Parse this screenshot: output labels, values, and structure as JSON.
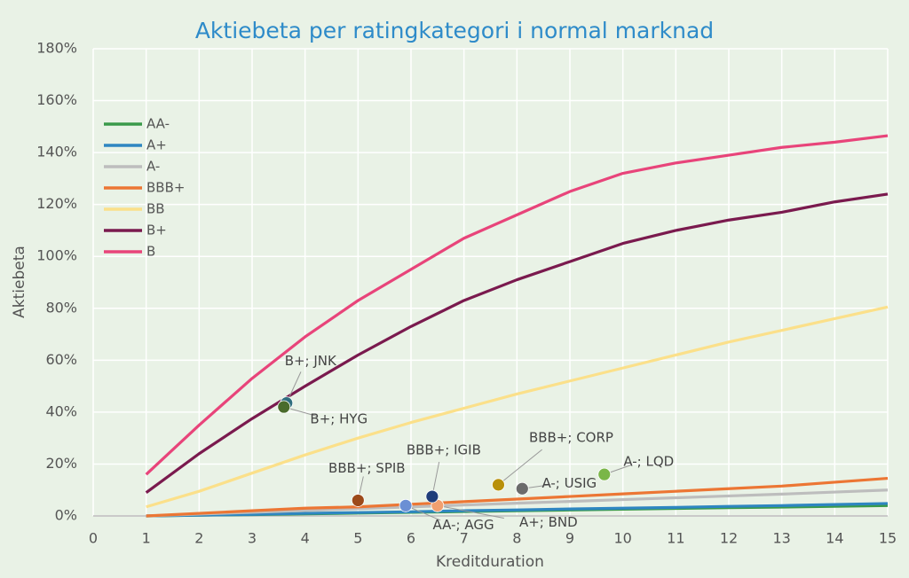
{
  "chart_data": {
    "type": "line",
    "title": "Aktiebeta per ratingkategori i normal marknad",
    "xlabel": "Kreditduration",
    "ylabel": "Aktiebeta",
    "xlim": [
      0,
      15
    ],
    "xticks": [
      0,
      1,
      2,
      3,
      4,
      5,
      6,
      7,
      8,
      9,
      10,
      11,
      12,
      13,
      14,
      15
    ],
    "ylim": [
      0,
      180
    ],
    "yticks": [
      {
        "value": 0,
        "label": "0%"
      },
      {
        "value": 20,
        "label": "20%"
      },
      {
        "value": 40,
        "label": "40%"
      },
      {
        "value": 60,
        "label": "60%"
      },
      {
        "value": 80,
        "label": "80%"
      },
      {
        "value": 100,
        "label": "100%"
      },
      {
        "value": 120,
        "label": "120%"
      },
      {
        "value": 140,
        "label": "140%"
      },
      {
        "value": 160,
        "label": "160%"
      },
      {
        "value": 180,
        "label": "180%"
      }
    ],
    "grid": true,
    "legend": "upper left",
    "x": [
      1,
      2,
      3,
      4,
      5,
      6,
      7,
      8,
      9,
      10,
      11,
      12,
      13,
      14,
      15
    ],
    "series": [
      {
        "name": "AA-",
        "color": "#3a9a4a",
        "values": [
          0,
          0.3,
          0.5,
          0.8,
          1.1,
          1.4,
          1.7,
          2,
          2.3,
          2.6,
          2.9,
          3.2,
          3.4,
          3.7,
          4
        ]
      },
      {
        "name": "A+",
        "color": "#2e86c1",
        "values": [
          0,
          0.3,
          0.6,
          1,
          1.3,
          1.6,
          2,
          2.3,
          2.7,
          3,
          3.3,
          3.7,
          4,
          4.4,
          4.8
        ]
      },
      {
        "name": "A-",
        "color": "#bdbdbd",
        "values": [
          0,
          0.7,
          1.4,
          2.1,
          2.8,
          3.5,
          4.2,
          4.9,
          5.6,
          6.3,
          7,
          7.7,
          8.4,
          9.2,
          10
        ]
      },
      {
        "name": "BBB+",
        "color": "#ec7634",
        "values": [
          0,
          1,
          2,
          3,
          3.5,
          4.5,
          5.5,
          6.5,
          7.5,
          8.5,
          9.5,
          10.5,
          11.5,
          13,
          14.5
        ]
      },
      {
        "name": "BB",
        "color": "#fbe08a",
        "values": [
          3.5,
          9.5,
          16.5,
          23.5,
          30,
          36,
          41.5,
          47,
          52,
          57,
          62,
          67,
          71.5,
          76,
          80.5
        ]
      },
      {
        "name": "B+",
        "color": "#7a1a4e",
        "values": [
          9,
          24,
          37.5,
          50,
          62,
          73,
          83,
          91,
          98,
          105,
          110,
          114,
          117,
          121,
          124
        ]
      },
      {
        "name": "B",
        "color": "#e8447a",
        "values": [
          16,
          35,
          53,
          69,
          83,
          95,
          107,
          116,
          125,
          132,
          136,
          139,
          142,
          144,
          146.5
        ]
      }
    ],
    "points": [
      {
        "label": "B+; JNK",
        "x": 3.65,
        "y": 43.5,
        "color": "#2f6e7e"
      },
      {
        "label": "B+; HYG",
        "x": 3.6,
        "y": 42,
        "color": "#4a6b2b"
      },
      {
        "label": "BBB+; SPIB",
        "x": 5.0,
        "y": 6,
        "color": "#9c4a1a"
      },
      {
        "label": "AA-; AGG",
        "x": 5.9,
        "y": 4,
        "color": "#6b8fd4"
      },
      {
        "label": "A+; BND",
        "x": 6.5,
        "y": 4,
        "color": "#f0a070"
      },
      {
        "label": "BBB+; IGIB",
        "x": 6.4,
        "y": 7.5,
        "color": "#1f3d7a"
      },
      {
        "label": "BBB+; CORP",
        "x": 7.65,
        "y": 12,
        "color": "#b8900a"
      },
      {
        "label": "A-; USIG",
        "x": 8.1,
        "y": 10.5,
        "color": "#6b6b6b"
      },
      {
        "label": "A-; LQD",
        "x": 9.65,
        "y": 16,
        "color": "#7ab648"
      }
    ]
  }
}
